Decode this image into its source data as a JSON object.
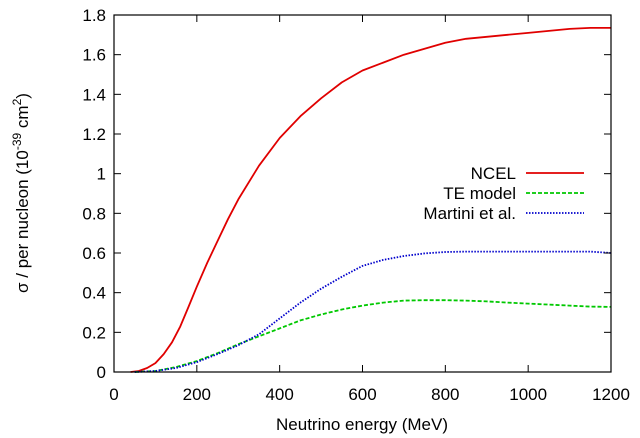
{
  "chart_data": {
    "type": "line",
    "title": "",
    "xlabel": "Neutrino energy (MeV)",
    "ylabel": {
      "prefix": "σ / per nucleon (10",
      "exp1": "-39",
      "middle": " cm",
      "exp2": "2",
      "suffix": ")"
    },
    "xlim": [
      0,
      1200
    ],
    "ylim": [
      0,
      1.8
    ],
    "xticks": [
      0,
      200,
      400,
      600,
      800,
      1000,
      1200
    ],
    "yticks": [
      0,
      0.2,
      0.4,
      0.6,
      0.8,
      1,
      1.2,
      1.4,
      1.6,
      1.8
    ],
    "grid": false,
    "legend_position": "right",
    "series": [
      {
        "name": "NCEL",
        "color": "#e00000",
        "dash": "solid",
        "x": [
          40,
          60,
          80,
          100,
          120,
          140,
          160,
          180,
          200,
          225,
          250,
          275,
          300,
          350,
          400,
          450,
          500,
          550,
          600,
          650,
          700,
          750,
          800,
          850,
          900,
          950,
          1000,
          1050,
          1100,
          1150,
          1200
        ],
        "y": [
          0.0,
          0.005,
          0.02,
          0.045,
          0.09,
          0.15,
          0.23,
          0.33,
          0.43,
          0.55,
          0.66,
          0.77,
          0.87,
          1.04,
          1.18,
          1.29,
          1.38,
          1.46,
          1.52,
          1.56,
          1.6,
          1.63,
          1.66,
          1.68,
          1.69,
          1.7,
          1.71,
          1.72,
          1.73,
          1.735,
          1.735
        ]
      },
      {
        "name": "TE model",
        "color": "#00c800",
        "dash": "dashed",
        "x": [
          50,
          100,
          150,
          200,
          250,
          300,
          350,
          400,
          450,
          500,
          550,
          600,
          650,
          700,
          750,
          800,
          850,
          900,
          950,
          1000,
          1050,
          1100,
          1150,
          1200
        ],
        "y": [
          0.0,
          0.005,
          0.025,
          0.055,
          0.095,
          0.14,
          0.18,
          0.22,
          0.26,
          0.29,
          0.315,
          0.335,
          0.35,
          0.36,
          0.362,
          0.362,
          0.36,
          0.356,
          0.35,
          0.345,
          0.34,
          0.335,
          0.33,
          0.328
        ]
      },
      {
        "name": "Martini et al.",
        "color": "#0000cc",
        "dash": "dotted",
        "x": [
          50,
          100,
          150,
          200,
          250,
          300,
          350,
          400,
          450,
          500,
          550,
          600,
          650,
          700,
          750,
          800,
          850,
          900,
          950,
          1000,
          1050,
          1100,
          1150,
          1200
        ],
        "y": [
          0.0,
          0.005,
          0.02,
          0.05,
          0.09,
          0.135,
          0.19,
          0.27,
          0.35,
          0.42,
          0.48,
          0.535,
          0.565,
          0.585,
          0.598,
          0.605,
          0.607,
          0.607,
          0.607,
          0.607,
          0.607,
          0.607,
          0.607,
          0.6
        ]
      }
    ]
  }
}
